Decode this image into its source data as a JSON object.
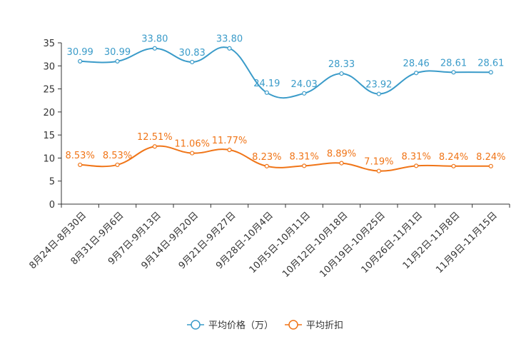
{
  "chart_data": {
    "type": "line",
    "title": "",
    "xlabel": "",
    "ylabel": "",
    "ylim": [
      0,
      35
    ],
    "yticks": [
      0,
      5,
      10,
      15,
      20,
      25,
      30,
      35
    ],
    "grid": false,
    "legend_position": "bottom-center",
    "categories": [
      "8月24日-8月30日",
      "8月31日-9月6日",
      "9月7日-9月13日",
      "9月14日-9月20日",
      "9月21日-9月27日",
      "9月28日-10月4日",
      "10月5日-10月11日",
      "10月12日-10月18日",
      "10月19日-10月25日",
      "10月26日-11月1日",
      "11月2日-11月8日",
      "11月9日-11月15日"
    ],
    "series": [
      {
        "name": "平均价格（万）",
        "color": "#3a9bc9",
        "values": [
          30.99,
          30.99,
          33.8,
          30.83,
          33.8,
          24.19,
          24.03,
          28.33,
          23.92,
          28.46,
          28.61,
          28.61
        ],
        "labels": [
          "30.99",
          "30.99",
          "33.80",
          "30.83",
          "33.80",
          "24.19",
          "24.03",
          "28.33",
          "23.92",
          "28.46",
          "28.61",
          "28.61"
        ]
      },
      {
        "name": "平均折扣",
        "color": "#f07518",
        "values": [
          8.53,
          8.53,
          12.51,
          11.06,
          11.77,
          8.23,
          8.31,
          8.89,
          7.19,
          8.31,
          8.24,
          8.24
        ],
        "labels": [
          "8.53%",
          "8.53%",
          "12.51%",
          "11.06%",
          "11.77%",
          "8.23%",
          "8.31%",
          "8.89%",
          "7.19%",
          "8.31%",
          "8.24%",
          "8.24%"
        ]
      }
    ]
  }
}
